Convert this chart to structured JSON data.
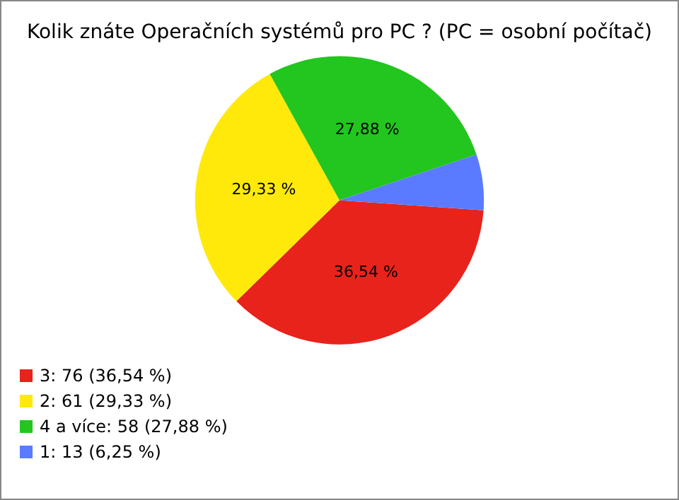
{
  "chart_data": {
    "type": "pie",
    "title": "Kolik znáte Operačních systémů pro PC ? (PC = osobní počítač)",
    "categories": [
      "3: 76 (36,54 %)",
      "2: 61 (29,33 %)",
      "4 a více: 58 (27,88 %)",
      "1: 13 (6,25 %)"
    ],
    "values": [
      36.54,
      29.33,
      27.88,
      6.25
    ],
    "colors": [
      "#e8231b",
      "#ffe90a",
      "#22c61e",
      "#5a7bff"
    ],
    "value_labels": [
      "36,54 %",
      "29,33 %",
      "27,88 %",
      null
    ],
    "legend": "bottom left"
  }
}
